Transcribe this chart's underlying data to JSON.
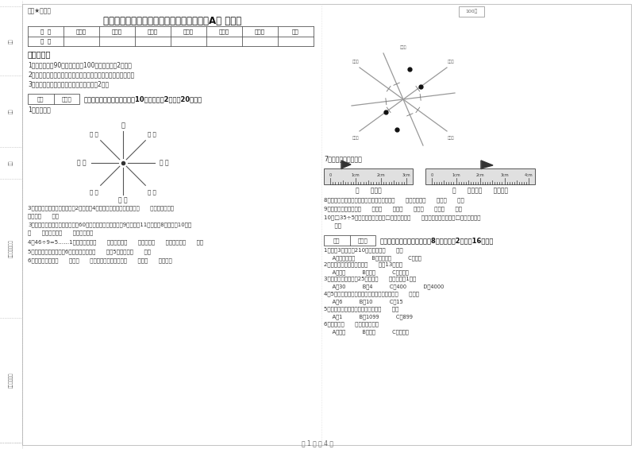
{
  "title": "西南师大版三年级数学下学期自我检测试题A卷 附解析",
  "header_label": "题型★自用题",
  "table_headers": [
    "题  号",
    "填空题",
    "选择题",
    "判断题",
    "计算题",
    "综合题",
    "应用题",
    "总分"
  ],
  "table_row": [
    "得  分",
    "",
    "",
    "",
    "",
    "",
    "",
    ""
  ],
  "exam_notice_title": "考试须知：",
  "exam_notices": [
    "1．考试时间：90分钟，满分为100分（含卷面分2分）。",
    "2．请首先按要求在试卷的指定位置填写您的姓名、班级、学号。",
    "3．不要在试卷上乱写乱画，卷面不整洁扣2分。"
  ],
  "section1_title": "一、用心思考，正确填空（共10小题，每题2分，共20分）。",
  "q1_label": "1、填一填。",
  "q3_text": "3．劳动课上做纸花，红红做了2朵纸花，4朵蓝花，红花占纸花总数的（      ），蓝花占纸花",
  "q3_text_b": "总数的（      ）。",
  "q3b_text": "3．体育老师对第一小组同学进行60米跑测试，成绩如下小红9秒，小强11秒，小明8秒，小军10秒。",
  "q3b_text_b": "（      ）跑得最快（      ）跑得最慢。",
  "q4_text": "4．46÷9=5……1中，被除数是（      ），除数是（      ），商是（      ），余数是（      ）。",
  "q5_text": "5．把一根绳子平均分成6份，每份是它的（      ），5份是它的（      ）。",
  "q6_text": "6．小红家在学校（      ）方（      ）米处；小明家在学校（      ）方（      ）米处。",
  "section2_title": "二、反复比较，慎重选择（共8小题，每题2分，共16分）。",
  "q1_right": "1．爸爸3小时行了210千米，他是（      ）。",
  "q1_right_opts": "     A．乘公共汽车          B．骑自行车          C．步行",
  "q2_right": "2．按农历计算，有的年份（      ）有13个月。",
  "q2_right_opts": "     A．一定          B．可能          C．不可能",
  "q3_right": "3．平均每个同学体重25千克，（      ）名同学重1吨。",
  "q3_right_opts": "     A．30          B．4          C．400          D．4000",
  "q4_right": "4．5名同学打乒乓球，每两人打一场，共要打（      ）场。",
  "q4_right_opts": "     A．6          B．10          C．15",
  "q5_right": "5．最小三位数和最大三位数的和是（      ）。",
  "q5_right_opts": "     A．1          B．1099          C．899",
  "q6_right": "6．四边形（      ）平行四边形。",
  "q6_right_opts": "     A．一定          B．可能          C．不可能",
  "q7_label": "7、量出钉子的长度。",
  "q8_text": "8、在进位加法中，不管哪一位上的数相加满（      ），都要向（      ）进（      ）。",
  "q9_text": "9、常用的长度单位有（      ）、（      ）、（      ）、（      ）、（      ）。",
  "q10_text": "10、□35÷5，要使商是两位数，□里最大可填（      ）；要使商是三位数，□里最小应填（",
  "q10_text_b": "      ）。",
  "ruler1_label": "（      ）毫米",
  "ruler2_label": "（      ）厘米（      ）毫米。",
  "page_label": "第 1 页 共 4 页",
  "bg_color": "#ffffff",
  "right_top_box": "100分"
}
